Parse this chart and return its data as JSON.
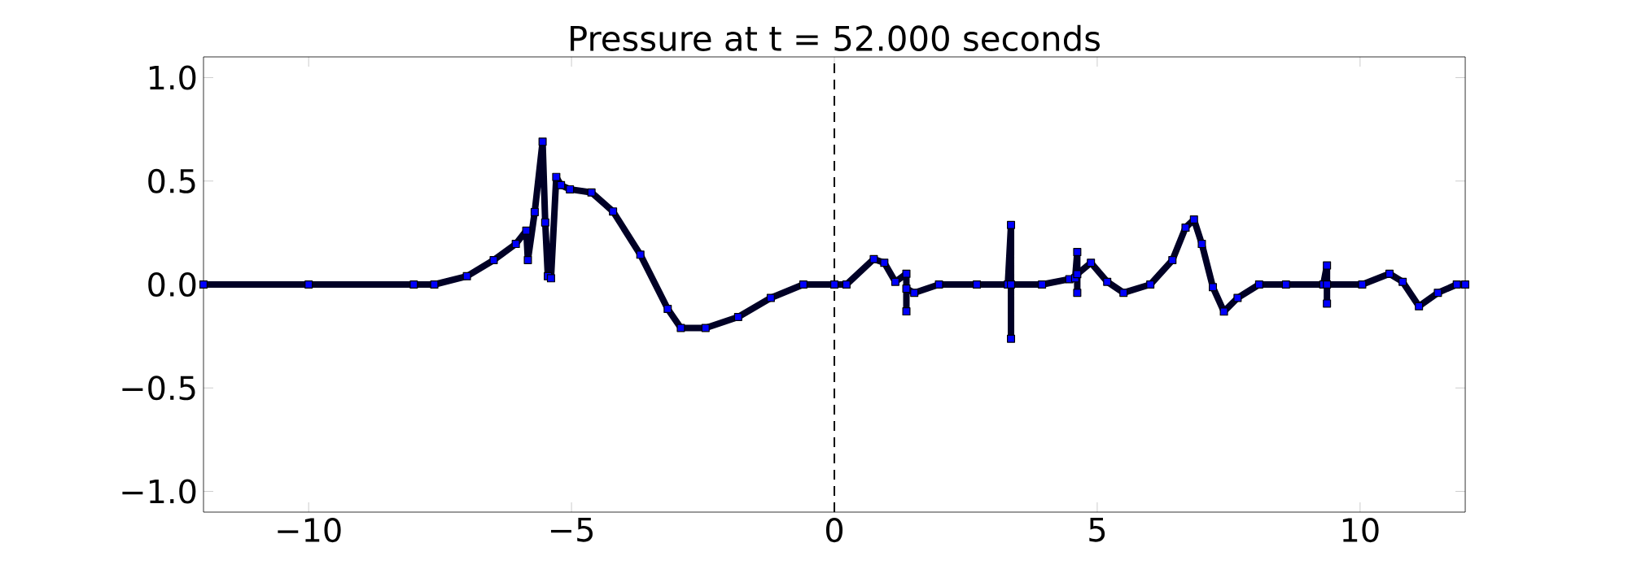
{
  "chart_data": {
    "type": "line",
    "title": "Pressure at t = 52.000 seconds",
    "x": [
      -12,
      -10,
      -8,
      -7.61,
      -6.99,
      -6.48,
      -6.06,
      -5.86,
      -5.83,
      -5.7,
      -5.55,
      -5.5,
      -5.45,
      -5.39,
      -5.29,
      -5.2,
      -5.03,
      -4.62,
      -4.21,
      -3.69,
      -3.17,
      -2.92,
      -2.45,
      -1.83,
      -1.21,
      -0.59,
      0,
      0.23,
      0.75,
      0.95,
      1.16,
      1.37,
      1.37,
      1.37,
      1.52,
      1.99,
      2.71,
      3.3,
      3.36,
      3.36,
      3.36,
      3.95,
      4.47,
      4.58,
      4.62,
      4.62,
      4.62,
      4.88,
      5.19,
      5.5,
      6.01,
      6.43,
      6.68,
      6.84,
      6.99,
      7.2,
      7.41,
      7.67,
      8.08,
      8.59,
      9.3,
      9.37,
      9.37,
      9.37,
      10.04,
      10.56,
      10.81,
      11.12,
      11.48,
      11.84,
      12
    ],
    "values": [
      0,
      0,
      0,
      0,
      0.04,
      0.118,
      0.196,
      0.26,
      0.118,
      0.35,
      0.69,
      0.3,
      0.04,
      0.03,
      0.52,
      0.48,
      0.46,
      0.445,
      0.353,
      0.144,
      -0.118,
      -0.21,
      -0.21,
      -0.157,
      -0.065,
      0,
      0,
      0,
      0.123,
      0.105,
      0.013,
      0.052,
      -0.13,
      -0.02,
      -0.04,
      0,
      0,
      0,
      0.288,
      -0.262,
      0,
      0,
      0.026,
      0.03,
      0.157,
      -0.04,
      0.05,
      0.105,
      0.013,
      -0.04,
      0,
      0.118,
      0.275,
      0.314,
      0.196,
      -0.013,
      -0.131,
      -0.065,
      0,
      0,
      0,
      0.092,
      -0.092,
      0,
      0,
      0.052,
      0.013,
      -0.105,
      -0.04,
      0,
      0
    ],
    "color": "#0000ff",
    "marker": "square",
    "grid": false,
    "xlim": [
      -12,
      12
    ],
    "ylim": [
      -1.1,
      1.1
    ],
    "xticks": [
      {
        "value": -10,
        "label": "−10"
      },
      {
        "value": -5,
        "label": "−5"
      },
      0,
      5,
      10
    ],
    "yticks": [
      {
        "value": -1,
        "label": "−1.0"
      },
      {
        "value": -0.5,
        "label": "−0.5"
      },
      {
        "value": 0,
        "label": "0.0"
      },
      {
        "value": 0.5,
        "label": "0.5"
      },
      {
        "value": 1,
        "label": "1.0"
      }
    ],
    "ref_lines": [
      {
        "axis": "x",
        "value": 0,
        "color": "#000000",
        "line_style": "dashed"
      }
    ]
  }
}
